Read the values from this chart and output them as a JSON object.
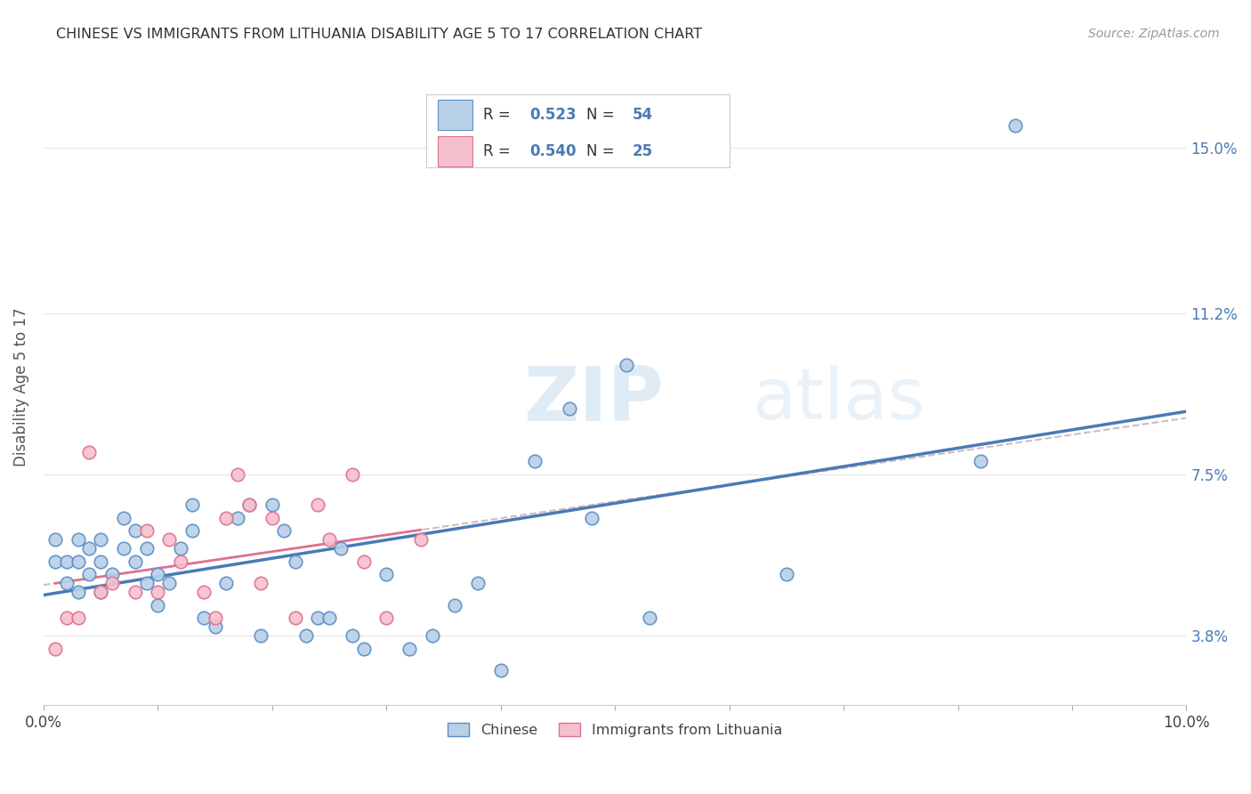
{
  "title": "CHINESE VS IMMIGRANTS FROM LITHUANIA DISABILITY AGE 5 TO 17 CORRELATION CHART",
  "source": "Source: ZipAtlas.com",
  "ylabel": "Disability Age 5 to 17",
  "xmin": 0.0,
  "xmax": 0.1,
  "ymin": 0.022,
  "ymax": 0.168,
  "ytick_vals": [
    0.038,
    0.075,
    0.112,
    0.15
  ],
  "ytick_labels": [
    "3.8%",
    "7.5%",
    "11.2%",
    "15.0%"
  ],
  "legend1_r": "0.523",
  "legend1_n": "54",
  "legend2_r": "0.540",
  "legend2_n": "25",
  "legend_label1": "Chinese",
  "legend_label2": "Immigrants from Lithuania",
  "blue_fill": "#b8d0e8",
  "blue_edge": "#5b8ec4",
  "pink_fill": "#f5c0ce",
  "pink_edge": "#e07090",
  "blue_line": "#4a7ab5",
  "pink_line": "#e07090",
  "dashed_color": "#c8b0b8",
  "grid_color": "#e5e5e5",
  "chinese_x": [
    0.001,
    0.001,
    0.002,
    0.002,
    0.003,
    0.003,
    0.003,
    0.004,
    0.004,
    0.005,
    0.005,
    0.005,
    0.006,
    0.007,
    0.007,
    0.008,
    0.008,
    0.009,
    0.009,
    0.01,
    0.01,
    0.011,
    0.012,
    0.013,
    0.013,
    0.014,
    0.015,
    0.016,
    0.017,
    0.018,
    0.019,
    0.02,
    0.021,
    0.022,
    0.023,
    0.024,
    0.025,
    0.026,
    0.027,
    0.028,
    0.03,
    0.032,
    0.034,
    0.036,
    0.038,
    0.04,
    0.043,
    0.046,
    0.048,
    0.051,
    0.053,
    0.065,
    0.082,
    0.085
  ],
  "chinese_y": [
    0.055,
    0.06,
    0.055,
    0.05,
    0.06,
    0.055,
    0.048,
    0.058,
    0.052,
    0.06,
    0.055,
    0.048,
    0.052,
    0.065,
    0.058,
    0.062,
    0.055,
    0.058,
    0.05,
    0.052,
    0.045,
    0.05,
    0.058,
    0.068,
    0.062,
    0.042,
    0.04,
    0.05,
    0.065,
    0.068,
    0.038,
    0.068,
    0.062,
    0.055,
    0.038,
    0.042,
    0.042,
    0.058,
    0.038,
    0.035,
    0.052,
    0.035,
    0.038,
    0.045,
    0.05,
    0.03,
    0.078,
    0.09,
    0.065,
    0.1,
    0.042,
    0.052,
    0.078,
    0.155
  ],
  "lithuania_x": [
    0.001,
    0.002,
    0.003,
    0.004,
    0.005,
    0.006,
    0.008,
    0.009,
    0.01,
    0.011,
    0.012,
    0.014,
    0.015,
    0.016,
    0.017,
    0.018,
    0.019,
    0.02,
    0.022,
    0.024,
    0.025,
    0.027,
    0.028,
    0.03,
    0.033
  ],
  "lithuania_y": [
    0.035,
    0.042,
    0.042,
    0.08,
    0.048,
    0.05,
    0.048,
    0.062,
    0.048,
    0.06,
    0.055,
    0.048,
    0.042,
    0.065,
    0.075,
    0.068,
    0.05,
    0.065,
    0.042,
    0.068,
    0.06,
    0.075,
    0.055,
    0.042,
    0.06
  ]
}
